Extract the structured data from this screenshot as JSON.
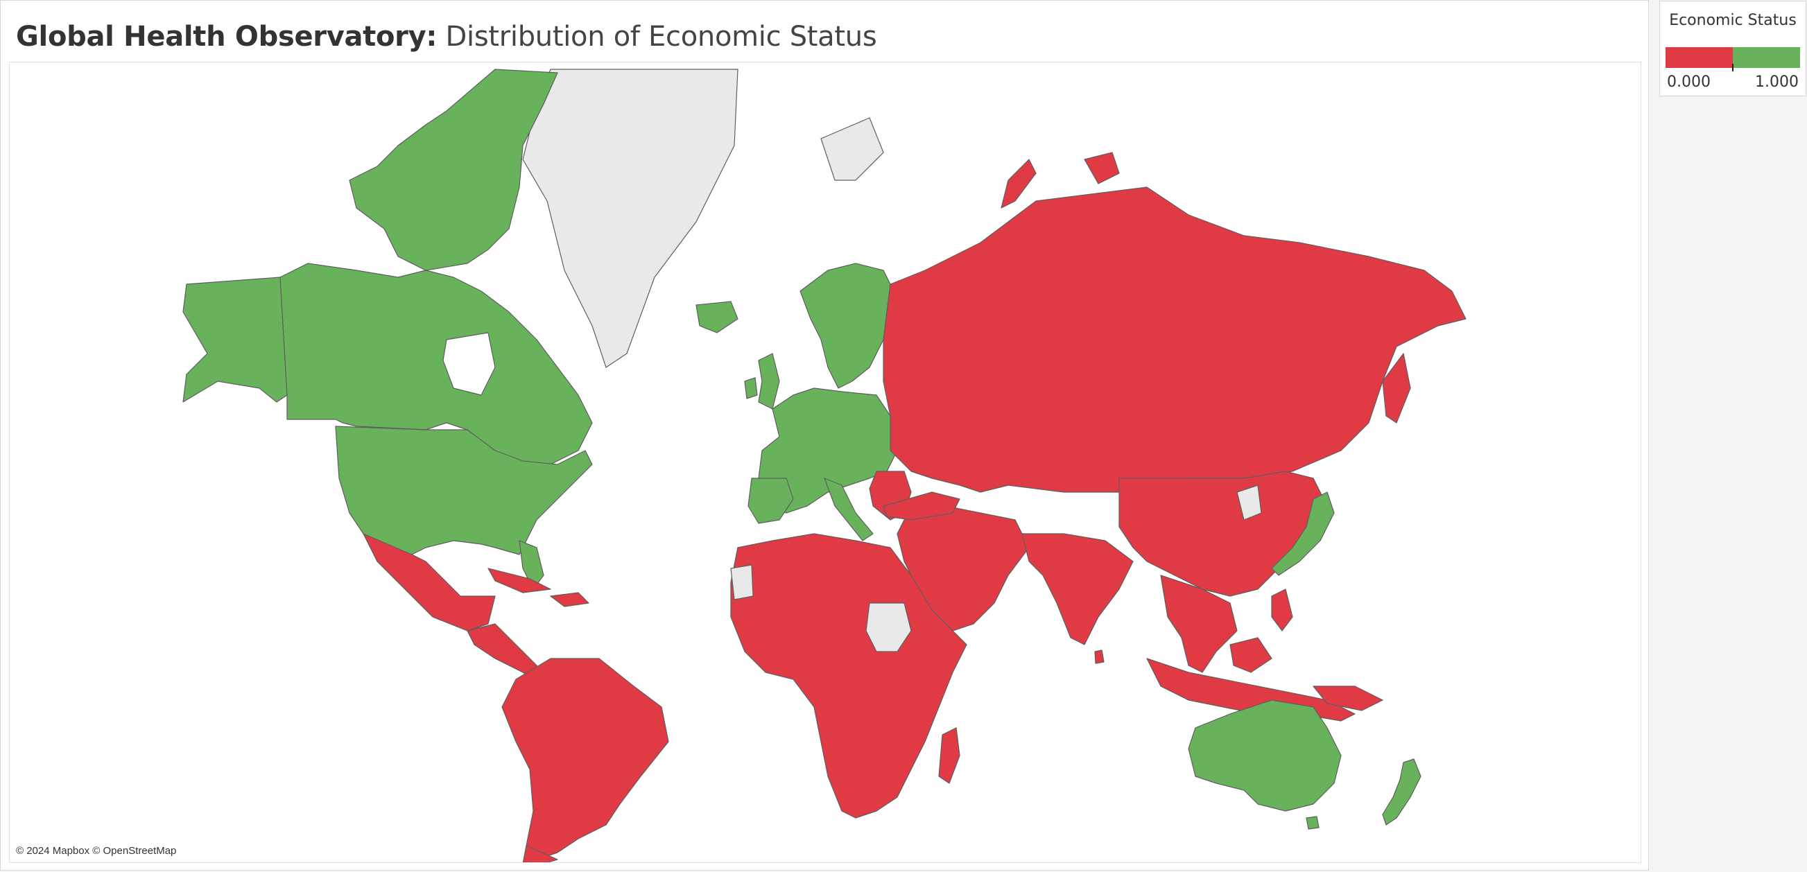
{
  "title": {
    "bold": "Global Health Observatory:",
    "regular": "Distribution of Economic Status"
  },
  "attribution": "© 2024 Mapbox © OpenStreetMap",
  "legend": {
    "title": "Economic Status",
    "min_label": "0.000",
    "max_label": "1.000",
    "ramp_colors": [
      "#e03a44",
      "#69b25c"
    ]
  },
  "colors": {
    "low": "#e03a44",
    "high": "#69b25c",
    "no_data": "#e9e9e9",
    "border": "#5e5e5e"
  },
  "chart_data": {
    "type": "map",
    "measure": "Economic Status",
    "scale": [
      0,
      1
    ],
    "regions": [
      {
        "name": "North America (Canada, USA, Alaska)",
        "value": 1,
        "status": "high"
      },
      {
        "name": "Greenland",
        "value": null,
        "status": "no_data"
      },
      {
        "name": "Iceland",
        "value": 1,
        "status": "high"
      },
      {
        "name": "Mexico & Central America",
        "value": 0,
        "status": "low"
      },
      {
        "name": "Caribbean",
        "value": 0,
        "status": "low"
      },
      {
        "name": "South America",
        "value": 0,
        "status": "low"
      },
      {
        "name": "Western & Northern Europe",
        "value": 1,
        "status": "high"
      },
      {
        "name": "Balkans",
        "value": 0,
        "status": "low"
      },
      {
        "name": "Russia & Central Asia",
        "value": 0,
        "status": "low"
      },
      {
        "name": "Middle East",
        "value": 0,
        "status": "low"
      },
      {
        "name": "Africa",
        "value": 0,
        "status": "low"
      },
      {
        "name": "Western Sahara",
        "value": null,
        "status": "no_data"
      },
      {
        "name": "South Sudan",
        "value": null,
        "status": "no_data"
      },
      {
        "name": "South Asia",
        "value": 0,
        "status": "low"
      },
      {
        "name": "China & Mongolia",
        "value": 0,
        "status": "low"
      },
      {
        "name": "North Korea",
        "value": null,
        "status": "no_data"
      },
      {
        "name": "Japan",
        "value": 1,
        "status": "high"
      },
      {
        "name": "South-East Asia",
        "value": 0,
        "status": "low"
      },
      {
        "name": "Indonesia & Papua",
        "value": 0,
        "status": "low"
      },
      {
        "name": "Australia",
        "value": 1,
        "status": "high"
      },
      {
        "name": "New Zealand",
        "value": 1,
        "status": "high"
      },
      {
        "name": "Madagascar",
        "value": 0,
        "status": "low"
      }
    ]
  }
}
